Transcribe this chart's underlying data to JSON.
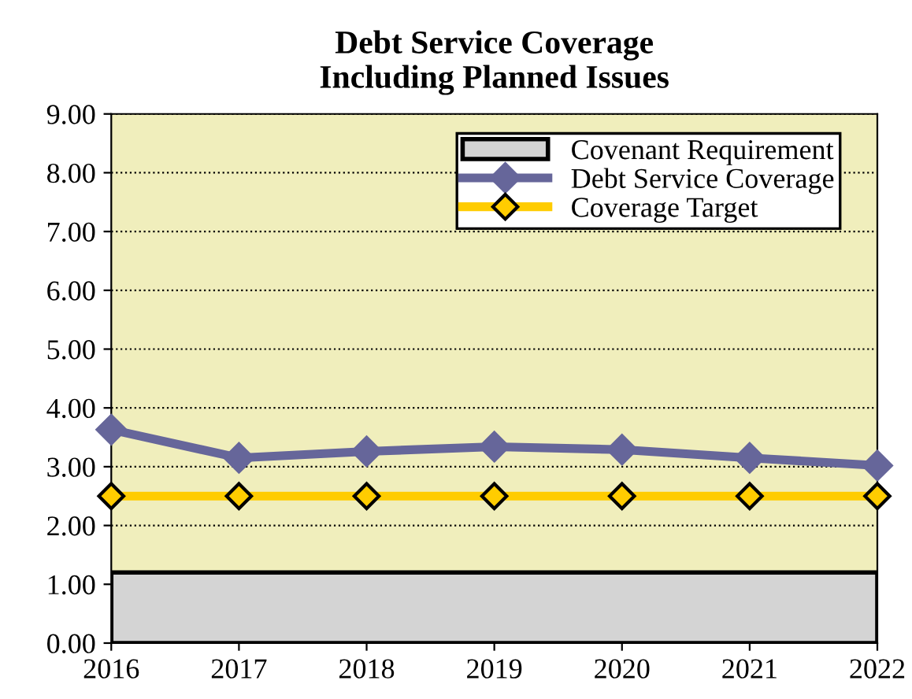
{
  "chart_data": {
    "type": "line",
    "title": "Debt Service Coverage\nIncluding Planned Issues",
    "x": [
      2016,
      2017,
      2018,
      2019,
      2020,
      2021,
      2022
    ],
    "series": [
      {
        "name": "Covenant Requirement",
        "type": "area",
        "color": "#d4d4d4",
        "values": [
          1.2,
          1.2,
          1.2,
          1.2,
          1.2,
          1.2,
          1.2
        ]
      },
      {
        "name": "Debt Service Coverage",
        "color": "#66669a",
        "marker": "diamond",
        "values": [
          3.63,
          3.15,
          3.26,
          3.34,
          3.29,
          3.15,
          3.02
        ]
      },
      {
        "name": "Coverage Target",
        "color": "#ffcc00",
        "marker": "diamond",
        "values": [
          2.5,
          2.5,
          2.5,
          2.5,
          2.5,
          2.5,
          2.5
        ]
      }
    ],
    "xlim": [
      2016,
      2022
    ],
    "xticks": [
      2016,
      2017,
      2018,
      2019,
      2020,
      2021,
      2022
    ],
    "ylim": [
      0,
      9
    ],
    "yticks": [
      {
        "value": 0,
        "label": "0.00"
      },
      {
        "value": 1,
        "label": "1.00"
      },
      {
        "value": 2,
        "label": "2.00"
      },
      {
        "value": 3,
        "label": "3.00"
      },
      {
        "value": 4,
        "label": "4.00"
      },
      {
        "value": 5,
        "label": "5.00"
      },
      {
        "value": 6,
        "label": "6.00"
      },
      {
        "value": 7,
        "label": "7.00"
      },
      {
        "value": 8,
        "label": "8.00"
      },
      {
        "value": 9,
        "label": "9.00"
      }
    ],
    "grid": "y",
    "legend": "top right"
  }
}
